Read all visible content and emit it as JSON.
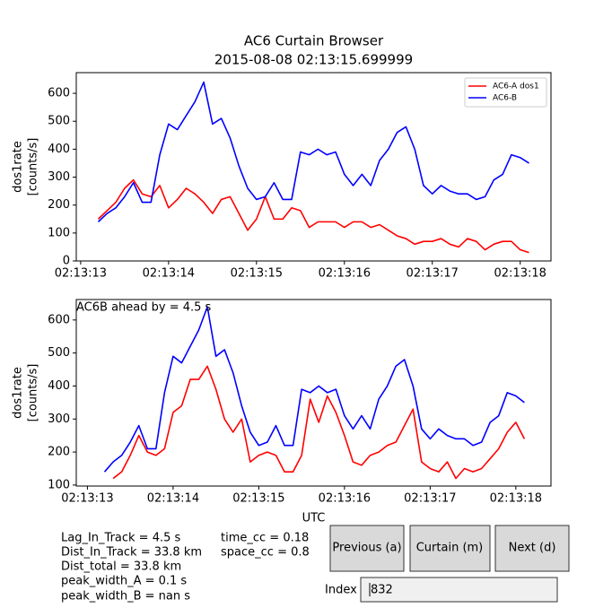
{
  "chart_data": [
    {
      "type": "line",
      "title": [
        "AC6 Curtain Browser",
        "2015-08-08 02:13:15.699999"
      ],
      "ylabel": [
        "dos1rate",
        "[counts/s]"
      ],
      "legend": "upper right",
      "x": [
        13.2,
        13.3,
        13.4,
        13.5,
        13.6,
        13.7,
        13.8,
        13.9,
        14.0,
        14.1,
        14.2,
        14.3,
        14.4,
        14.5,
        14.6,
        14.7,
        14.8,
        14.9,
        15.0,
        15.1,
        15.2,
        15.3,
        15.4,
        15.5,
        15.6,
        15.7,
        15.8,
        15.9,
        16.0,
        16.1,
        16.2,
        16.3,
        16.4,
        16.5,
        16.6,
        16.7,
        16.8,
        16.9,
        17.0,
        17.1,
        17.2,
        17.3,
        17.4,
        17.5,
        17.6,
        17.7,
        17.8,
        17.9,
        18.0,
        18.1
      ],
      "xlim": [
        12.95,
        18.35
      ],
      "xticks": [
        {
          "value": 13,
          "label": "02:13:13"
        },
        {
          "value": 14,
          "label": "02:13:14"
        },
        {
          "value": 15,
          "label": "02:13:15"
        },
        {
          "value": 16,
          "label": "02:13:16"
        },
        {
          "value": 17,
          "label": "02:13:17"
        },
        {
          "value": 18,
          "label": "02:13:18"
        }
      ],
      "ylim": [
        0,
        674
      ],
      "yticks": [
        0,
        100,
        200,
        300,
        400,
        500,
        600
      ],
      "series": [
        {
          "name": "AC6-A dos1",
          "color": "#ff0000",
          "values": [
            150,
            180,
            210,
            260,
            290,
            240,
            230,
            270,
            190,
            220,
            260,
            240,
            210,
            170,
            220,
            230,
            170,
            110,
            150,
            230,
            150,
            150,
            190,
            180,
            120,
            140,
            140,
            140,
            120,
            140,
            140,
            120,
            130,
            110,
            90,
            80,
            60,
            70,
            70,
            80,
            60,
            50,
            80,
            70,
            40,
            60,
            70,
            70,
            40,
            30
          ]
        },
        {
          "name": "AC6-B",
          "color": "#0000ff",
          "values": [
            140,
            170,
            190,
            230,
            280,
            210,
            210,
            380,
            490,
            470,
            520,
            570,
            640,
            490,
            510,
            440,
            340,
            260,
            220,
            230,
            280,
            220,
            220,
            390,
            380,
            400,
            380,
            390,
            310,
            270,
            310,
            270,
            360,
            400,
            460,
            480,
            400,
            270,
            240,
            270,
            250,
            240,
            240,
            220,
            230,
            290,
            310,
            380,
            370,
            350
          ]
        }
      ]
    },
    {
      "type": "line",
      "xlabel": "UTC",
      "ylabel": [
        "dos1rate",
        "[counts/s]"
      ],
      "annotation": "AC6B ahead by = 4.5 s",
      "x": [
        13.2,
        13.3,
        13.4,
        13.5,
        13.6,
        13.7,
        13.8,
        13.9,
        14.0,
        14.1,
        14.2,
        14.3,
        14.4,
        14.5,
        14.6,
        14.7,
        14.8,
        14.9,
        15.0,
        15.1,
        15.2,
        15.3,
        15.4,
        15.5,
        15.6,
        15.7,
        15.8,
        15.9,
        16.0,
        16.1,
        16.2,
        16.3,
        16.4,
        16.5,
        16.6,
        16.7,
        16.8,
        16.9,
        17.0,
        17.1,
        17.2,
        17.3,
        17.4,
        17.5,
        17.6,
        17.7,
        17.8,
        17.9,
        18.0,
        18.1
      ],
      "xlim": [
        12.87,
        18.41
      ],
      "xticks": [
        {
          "value": 13,
          "label": "02:13:13"
        },
        {
          "value": 14,
          "label": "02:13:14"
        },
        {
          "value": 15,
          "label": "02:13:15"
        },
        {
          "value": 16,
          "label": "02:13:16"
        },
        {
          "value": 17,
          "label": "02:13:17"
        },
        {
          "value": 18,
          "label": "02:13:18"
        }
      ],
      "ylim": [
        97,
        662
      ],
      "yticks": [
        100,
        200,
        300,
        400,
        500,
        600
      ],
      "series": [
        {
          "color": "#ff0000",
          "values": [
            null,
            120,
            140,
            190,
            250,
            200,
            190,
            210,
            320,
            340,
            420,
            420,
            460,
            390,
            300,
            260,
            300,
            170,
            190,
            200,
            190,
            140,
            140,
            190,
            360,
            290,
            370,
            320,
            250,
            170,
            160,
            190,
            200,
            220,
            230,
            280,
            330,
            170,
            150,
            140,
            170,
            120,
            150,
            140,
            150,
            180,
            210,
            260,
            290,
            240
          ]
        },
        {
          "color": "#0000ff",
          "values": [
            140,
            170,
            190,
            230,
            280,
            210,
            210,
            380,
            490,
            470,
            520,
            570,
            640,
            490,
            510,
            440,
            340,
            260,
            220,
            230,
            280,
            220,
            220,
            390,
            380,
            400,
            380,
            390,
            310,
            270,
            310,
            270,
            360,
            400,
            460,
            480,
            400,
            270,
            240,
            270,
            250,
            240,
            240,
            220,
            230,
            290,
            310,
            380,
            370,
            350
          ]
        }
      ]
    }
  ],
  "info": [
    "Lag_In_Track = 4.5 s",
    "Dist_In_Track = 33.8 km",
    "Dist_total = 33.8 km",
    "peak_width_A = 0.1 s",
    "peak_width_B = nan s"
  ],
  "correlation": [
    "time_cc = 0.18",
    "space_cc = 0.8"
  ],
  "buttons": [
    "Previous (a)",
    "Curtain (m)",
    "Next (d)"
  ],
  "index": {
    "label": "Index",
    "value": "832"
  }
}
